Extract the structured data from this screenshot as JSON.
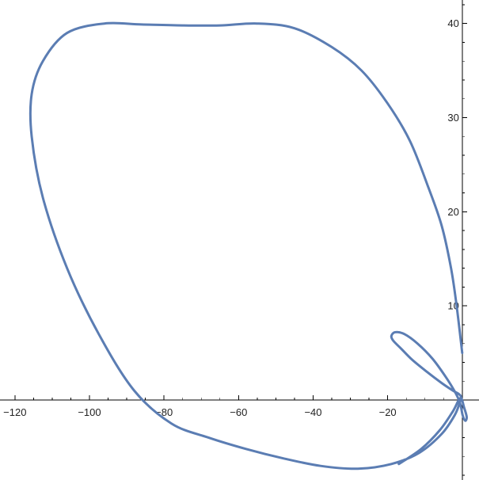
{
  "chart_data": {
    "type": "line",
    "title": "",
    "xlabel": "",
    "ylabel": "",
    "xlim": [
      -124,
      4.5
    ],
    "ylim": [
      -8.5,
      42.5
    ],
    "grid": false,
    "x_ticks": [
      -120,
      -100,
      -80,
      -60,
      -40,
      -20
    ],
    "x_tick_labels": [
      "−120",
      "−100",
      "−80",
      "−60",
      "−40",
      "−20"
    ],
    "y_ticks": [
      10,
      20,
      30,
      40
    ],
    "y_tick_labels": [
      "10",
      "20",
      "30",
      "40"
    ],
    "series": [
      {
        "color": "#5b7db3",
        "x": [
          0.0,
          -1.5,
          -3.0,
          -5.5,
          -9.0,
          -14.0,
          -20.0,
          -27.0,
          -35.0,
          -45.0,
          -55.0,
          -65.0,
          -75.0,
          -86.0,
          -96.0,
          -106.0,
          -112.5,
          -115.5,
          -115.5,
          -112.5,
          -106.0,
          -97.5,
          -88.0,
          -78.0,
          -68.0,
          -58.0,
          -48.0,
          -38.0,
          -28.0,
          -19.0,
          -11.5,
          -5.5,
          -2.0,
          -0.6,
          -0.3,
          -0.8,
          -2.5,
          -5.5,
          -9.5,
          -13.5,
          -16.5,
          -18.5,
          -19.0,
          -18.0,
          -15.5,
          -12.0,
          -8.0,
          -4.5,
          -2.0,
          -0.6,
          0.1,
          0.8,
          1.2,
          0.5,
          -0.5,
          -2.5,
          -6.0,
          -11.0,
          -17.0
        ],
        "y": [
          5.0,
          10.0,
          14.0,
          18.5,
          22.5,
          27.5,
          31.5,
          35.0,
          37.5,
          39.5,
          40.0,
          39.8,
          39.8,
          39.9,
          40.0,
          39.0,
          36.0,
          32.5,
          28.0,
          21.5,
          14.0,
          7.0,
          1.0,
          -2.5,
          -4.0,
          -5.2,
          -6.2,
          -7.0,
          -7.3,
          -6.8,
          -5.6,
          -3.6,
          -1.6,
          -0.2,
          0.3,
          0.6,
          1.0,
          1.8,
          3.0,
          4.3,
          5.5,
          6.3,
          6.8,
          7.2,
          7.0,
          6.0,
          4.4,
          2.5,
          0.9,
          -0.3,
          -1.6,
          -2.2,
          -1.8,
          -0.8,
          0.2,
          -1.2,
          -3.2,
          -5.2,
          -6.8
        ]
      }
    ]
  }
}
